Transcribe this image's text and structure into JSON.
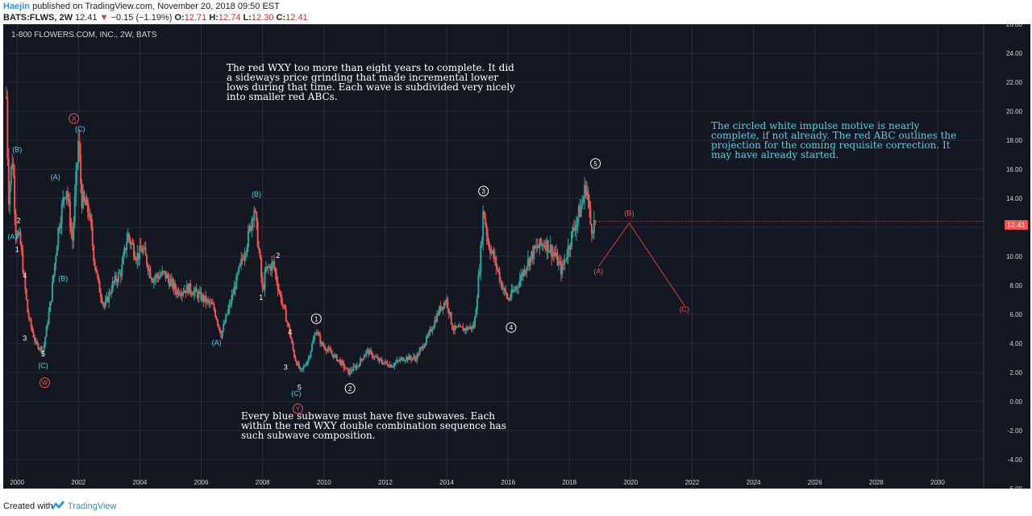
{
  "header": {
    "author": "Haejin",
    "published": " published on TradingView.com, November 20, 2018 09:50 EST",
    "symbol": "BATS:FLWS, 2W",
    "last": "12.41",
    "change": "−0.15 (−1.19%)",
    "o_label": "O:",
    "o_val": "12.71",
    "h_label": "H:",
    "h_val": "12.74",
    "l_label": "L:",
    "l_val": "12.30",
    "c_label": "C:",
    "c_val": "12.41"
  },
  "chart_title": "1-800 FLOWERS.COM, INC., 2W, BATS",
  "price_tag": "12.41",
  "notes": {
    "top": "The red WXY too more than eight years to complete. It did a sideways price grinding that made incremental lower lows during that time. Each wave is subdivided very nicely into smaller red ABCs.",
    "right": "The circled white impulse motive is nearly complete, if not already. The red ABC outlines the projection for the coming requisite correction. It may have already started.",
    "bottom": "Every blue subwave must have five subwaves. Each within the red WXY double combination sequence has such subwave composition."
  },
  "footer": {
    "created": "Created with",
    "brand": "TradingView"
  },
  "colors": {
    "up": "#26a69a",
    "down": "#ef5350",
    "blue_label": "#4dd0e1",
    "red_label": "#ef5350",
    "bg": "#131722"
  },
  "chart_data": {
    "type": "candlestick",
    "ylim": [
      -6,
      26
    ],
    "y_ticks": [
      26,
      24,
      22,
      20,
      18,
      16,
      14,
      12,
      10,
      8,
      6,
      4,
      2,
      0,
      -2,
      -4,
      -6
    ],
    "y_tick_labels": [
      "26.00",
      "24.00",
      "22.00",
      "20.00",
      "18.00",
      "16.00",
      "14.00",
      "12.00",
      "10.00",
      "8.00",
      "6.00",
      "4.00",
      "2.00",
      "0.00",
      "-2.00",
      "-4.00",
      "-6.00"
    ],
    "x_ticks": [
      2000,
      2002,
      2004,
      2006,
      2008,
      2010,
      2012,
      2014,
      2016,
      2018,
      2020,
      2022,
      2024,
      2026,
      2028,
      2030
    ],
    "x_tick_labels": [
      "2000",
      "2002",
      "2004",
      "2006",
      "2008",
      "2010",
      "2012",
      "2014",
      "2016",
      "2018",
      "2020",
      "2022",
      "2024",
      "2026",
      "2028",
      "2030"
    ],
    "xlim": [
      1999.6,
      2031.5
    ],
    "price_path": [
      [
        1999.65,
        21
      ],
      [
        1999.72,
        14
      ],
      [
        1999.85,
        17
      ],
      [
        1999.95,
        12
      ],
      [
        2000.1,
        11
      ],
      [
        2000.35,
        6
      ],
      [
        2000.6,
        4
      ],
      [
        2000.85,
        3.5
      ],
      [
        2001.1,
        7
      ],
      [
        2001.35,
        12
      ],
      [
        2001.6,
        15
      ],
      [
        2001.8,
        11
      ],
      [
        2002.0,
        18
      ],
      [
        2002.1,
        14
      ],
      [
        2002.35,
        13
      ],
      [
        2002.5,
        10
      ],
      [
        2002.65,
        8
      ],
      [
        2002.85,
        6.5
      ],
      [
        2003.1,
        8
      ],
      [
        2003.4,
        9
      ],
      [
        2003.6,
        11.5
      ],
      [
        2003.9,
        10
      ],
      [
        2004.1,
        10.5
      ],
      [
        2004.4,
        8.5
      ],
      [
        2004.8,
        8.8
      ],
      [
        2005.2,
        7.6
      ],
      [
        2005.6,
        7.8
      ],
      [
        2006.0,
        7.2
      ],
      [
        2006.4,
        6.5
      ],
      [
        2006.65,
        4.6
      ],
      [
        2006.95,
        6.8
      ],
      [
        2007.3,
        9.5
      ],
      [
        2007.55,
        11.5
      ],
      [
        2007.72,
        13.5
      ],
      [
        2007.9,
        10
      ],
      [
        2008.0,
        7.5
      ],
      [
        2008.1,
        9
      ],
      [
        2008.35,
        9.5
      ],
      [
        2008.55,
        7.5
      ],
      [
        2008.8,
        5.5
      ],
      [
        2009.05,
        3
      ],
      [
        2009.25,
        2
      ],
      [
        2009.5,
        3
      ],
      [
        2009.75,
        5
      ],
      [
        2009.9,
        4
      ],
      [
        2010.15,
        3.5
      ],
      [
        2010.5,
        2.8
      ],
      [
        2010.8,
        2
      ],
      [
        2011.1,
        2.5
      ],
      [
        2011.4,
        3.5
      ],
      [
        2011.8,
        2.8
      ],
      [
        2012.2,
        2.5
      ],
      [
        2012.6,
        3
      ],
      [
        2013.0,
        3
      ],
      [
        2013.4,
        4.5
      ],
      [
        2013.8,
        6.5
      ],
      [
        2014.0,
        7
      ],
      [
        2014.2,
        5
      ],
      [
        2014.6,
        5
      ],
      [
        2014.9,
        5.2
      ],
      [
        2015.1,
        10
      ],
      [
        2015.2,
        13.3
      ],
      [
        2015.35,
        11
      ],
      [
        2015.6,
        9.5
      ],
      [
        2015.8,
        8
      ],
      [
        2016.0,
        7
      ],
      [
        2016.3,
        8
      ],
      [
        2016.6,
        9.5
      ],
      [
        2016.9,
        10.5
      ],
      [
        2017.2,
        11
      ],
      [
        2017.5,
        10.2
      ],
      [
        2017.75,
        9
      ],
      [
        2017.95,
        10.5
      ],
      [
        2018.15,
        12
      ],
      [
        2018.4,
        13.5
      ],
      [
        2018.55,
        15
      ],
      [
        2018.7,
        12
      ],
      [
        2018.88,
        12.41
      ]
    ],
    "projection": [
      [
        2018.95,
        9.3
      ],
      [
        2019.95,
        12.3
      ],
      [
        2021.75,
        6.6
      ]
    ],
    "wave_labels": [
      {
        "text": "(B)",
        "x": 2000.0,
        "y": 17.2,
        "color": "blue"
      },
      {
        "text": "2",
        "x": 2000.05,
        "y": 12.3,
        "color": "white"
      },
      {
        "text": "(A)",
        "x": 1999.85,
        "y": 11.2,
        "color": "blue"
      },
      {
        "text": "1",
        "x": 2000.0,
        "y": 10.3,
        "color": "white"
      },
      {
        "text": "4",
        "x": 2000.25,
        "y": 8.5,
        "color": "white"
      },
      {
        "text": "3",
        "x": 2000.25,
        "y": 4.2,
        "color": "white"
      },
      {
        "text": "5",
        "x": 2000.85,
        "y": 3.1,
        "color": "white"
      },
      {
        "text": "(C)",
        "x": 2000.85,
        "y": 2.3,
        "color": "blue"
      },
      {
        "text": "(A)",
        "x": 2001.25,
        "y": 15.3,
        "color": "blue"
      },
      {
        "text": "(B)",
        "x": 2001.5,
        "y": 8.3,
        "color": "blue"
      },
      {
        "text": "(C)",
        "x": 2002.05,
        "y": 18.6,
        "color": "blue"
      },
      {
        "text": "(B)",
        "x": 2007.8,
        "y": 14.1,
        "color": "blue"
      },
      {
        "text": "2",
        "x": 2008.5,
        "y": 9.9,
        "color": "white"
      },
      {
        "text": "1",
        "x": 2007.95,
        "y": 7.0,
        "color": "white"
      },
      {
        "text": "(A)",
        "x": 2006.5,
        "y": 3.9,
        "color": "blue"
      },
      {
        "text": "4",
        "x": 2008.9,
        "y": 4.6,
        "color": "white"
      },
      {
        "text": "3",
        "x": 2008.75,
        "y": 2.2,
        "color": "white"
      },
      {
        "text": "5",
        "x": 2009.2,
        "y": 0.8,
        "color": "white"
      },
      {
        "text": "(C)",
        "x": 2009.1,
        "y": 0.4,
        "color": "blue"
      },
      {
        "text": "(A)",
        "x": 2018.95,
        "y": 8.8,
        "color": "red"
      },
      {
        "text": "(B)",
        "x": 2019.95,
        "y": 12.8,
        "color": "red"
      },
      {
        "text": "(C)",
        "x": 2021.75,
        "y": 6.2,
        "color": "red"
      }
    ],
    "circle_labels": [
      {
        "text": "X",
        "x": 2001.85,
        "y": 19.5,
        "color": "red"
      },
      {
        "text": "W",
        "x": 2000.9,
        "y": 1.3,
        "color": "red"
      },
      {
        "text": "Y",
        "x": 2009.15,
        "y": -0.5,
        "color": "red"
      },
      {
        "text": "1",
        "x": 2009.75,
        "y": 5.7,
        "color": "white"
      },
      {
        "text": "2",
        "x": 2010.85,
        "y": 0.9,
        "color": "white"
      },
      {
        "text": "3",
        "x": 2015.2,
        "y": 14.5,
        "color": "white"
      },
      {
        "text": "4",
        "x": 2016.1,
        "y": 5.1,
        "color": "white"
      },
      {
        "text": "5",
        "x": 2018.85,
        "y": 16.4,
        "color": "white"
      }
    ]
  }
}
